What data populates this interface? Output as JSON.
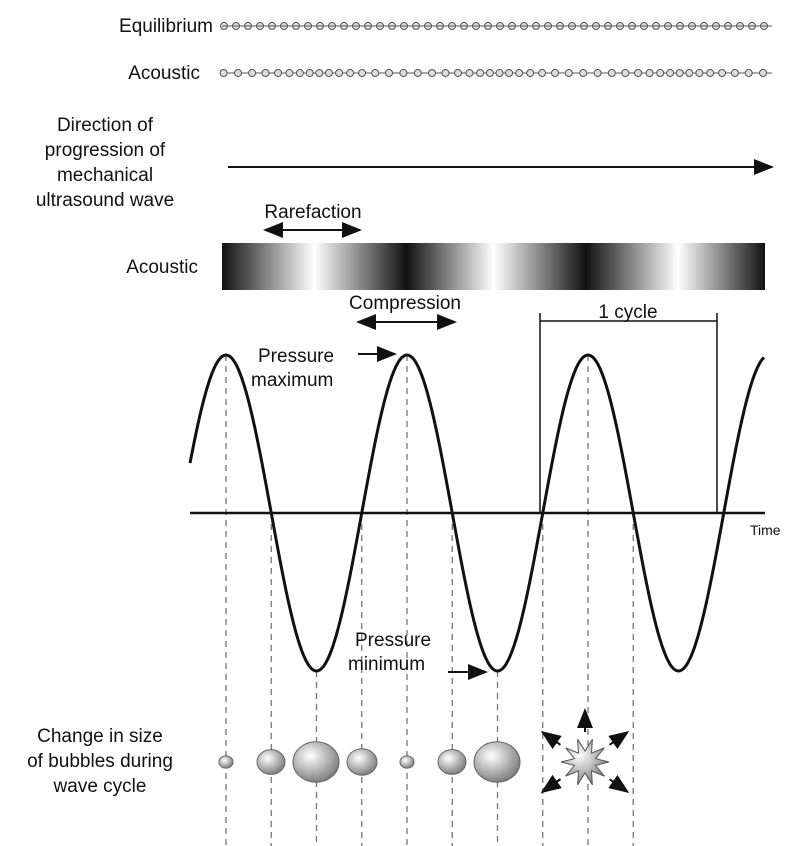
{
  "labels": {
    "equilibrium": "Equilibrium",
    "acoustic_beads": "Acoustic",
    "direction": [
      "Direction of",
      "progression of",
      "mechanical",
      "ultrasound wave"
    ],
    "rarefaction": "Rarefaction",
    "acoustic_band": "Acoustic",
    "compression": "Compression",
    "cycle": "1 cycle",
    "pressure_max": [
      "Pressure",
      "maximum"
    ],
    "time": "Time",
    "pressure_min": [
      "Pressure",
      "minimum"
    ],
    "bubbles": [
      "Change in size",
      "of bubbles during",
      "wave cycle"
    ]
  }
}
